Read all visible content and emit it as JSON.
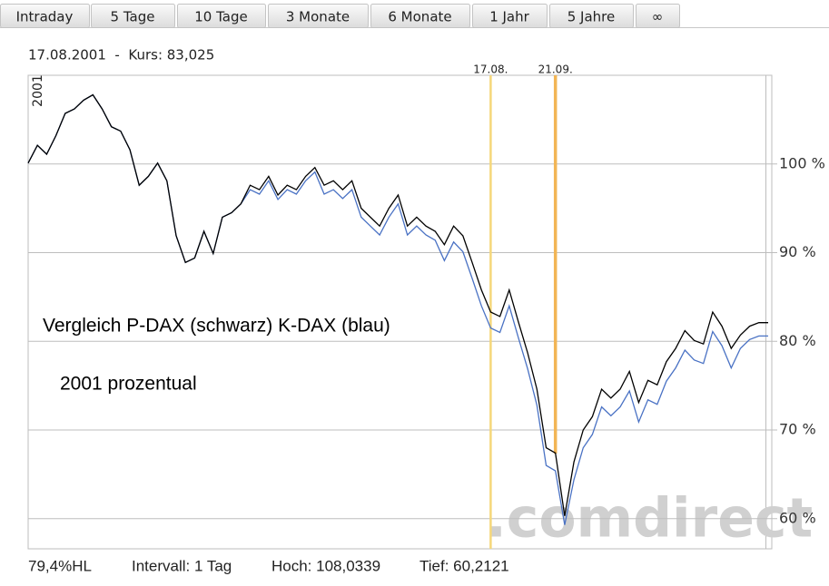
{
  "tabs": [
    "Intraday",
    "5 Tage",
    "10 Tage",
    "3 Monate",
    "6 Monate",
    "1 Jahr",
    "5 Jahre",
    "∞"
  ],
  "header": {
    "text": "17.08.2001  -  Kurs: 83,025"
  },
  "footer": [
    "79,4%HL",
    "Intervall: 1 Tag",
    "Hoch: 108,0339",
    "Tief: 60,2121"
  ],
  "watermark": ".comdirect",
  "chart_data": {
    "type": "line",
    "year_label": "2001",
    "annotations": [
      "Vergleich P-DAX (schwarz) K-DAX (blau)",
      "2001 prozentual"
    ],
    "categories": [
      null,
      null,
      null,
      null,
      null,
      null,
      null,
      null,
      null,
      null,
      null,
      null,
      null,
      null,
      null,
      null,
      null,
      null,
      null,
      null,
      null,
      null,
      null,
      null,
      null,
      null,
      null,
      null,
      null,
      null,
      null,
      null,
      null,
      null,
      null,
      null,
      null,
      null,
      null,
      null,
      null,
      null,
      null,
      null,
      null,
      null,
      null,
      null,
      null,
      null,
      "17.08.",
      null,
      null,
      null,
      null,
      null,
      null,
      "21.09.",
      null,
      null,
      null,
      null,
      null,
      null,
      null,
      null,
      null,
      null,
      null,
      null,
      null,
      null,
      null,
      null,
      null,
      null,
      null,
      null,
      null,
      null,
      null
    ],
    "marker_colors": [
      "#f5d77a",
      "#f2b555"
    ],
    "series": [
      {
        "color": "#000000",
        "values": [
          100.1,
          102.1,
          101.1,
          103.2,
          105.7,
          106.2,
          107.2,
          107.8,
          106.2,
          104.2,
          103.7,
          101.6,
          97.6,
          98.6,
          100.1,
          98.1,
          91.9,
          88.9,
          89.4,
          92.4,
          89.9,
          94.0,
          94.5,
          95.5,
          97.6,
          97.1,
          98.6,
          96.5,
          97.6,
          97.1,
          98.6,
          99.6,
          97.6,
          98.1,
          97.1,
          98.1,
          95.0,
          94.0,
          93.0,
          95.0,
          96.5,
          93.0,
          94.0,
          93.0,
          92.4,
          90.9,
          93.0,
          91.9,
          88.9,
          85.8,
          83.3,
          82.8,
          85.8,
          82.2,
          78.7,
          74.6,
          68.0,
          67.4,
          60.3,
          66.4,
          70.0,
          71.5,
          74.6,
          73.6,
          74.6,
          76.6,
          73.1,
          75.6,
          75.1,
          77.7,
          79.2,
          81.2,
          80.1,
          79.7,
          83.3,
          81.7,
          79.2,
          80.7,
          81.7,
          82.1,
          82.1
        ]
      },
      {
        "color": "#4a72c4",
        "values": [
          100.1,
          102.1,
          101.1,
          103.2,
          105.7,
          106.2,
          107.2,
          107.8,
          106.2,
          104.2,
          103.7,
          101.6,
          97.6,
          98.6,
          100.1,
          98.1,
          91.9,
          88.9,
          89.4,
          92.4,
          89.9,
          94.0,
          94.5,
          95.5,
          97.1,
          96.6,
          98.1,
          96.0,
          97.1,
          96.6,
          98.1,
          99.1,
          96.6,
          97.1,
          96.1,
          97.1,
          94.0,
          93.0,
          92.0,
          94.0,
          95.5,
          92.0,
          93.0,
          92.0,
          91.4,
          89.1,
          91.2,
          90.1,
          87.1,
          84.0,
          81.5,
          81.0,
          84.0,
          80.4,
          76.9,
          72.8,
          66.0,
          65.4,
          59.3,
          64.4,
          68.0,
          69.5,
          72.6,
          71.6,
          72.6,
          74.4,
          70.9,
          73.4,
          72.9,
          75.5,
          77.0,
          79.0,
          77.9,
          77.5,
          81.1,
          79.5,
          77.0,
          79.2,
          80.2,
          80.6,
          80.6
        ]
      }
    ],
    "ylim": [
      56.6,
      110
    ],
    "yticks": [
      {
        "value": 60,
        "label": "60 %"
      },
      {
        "value": 70,
        "label": "70 %"
      },
      {
        "value": 80,
        "label": "80 %"
      },
      {
        "value": 90,
        "label": "90 %"
      },
      {
        "value": 100,
        "label": "100 %"
      }
    ],
    "grid": true
  }
}
